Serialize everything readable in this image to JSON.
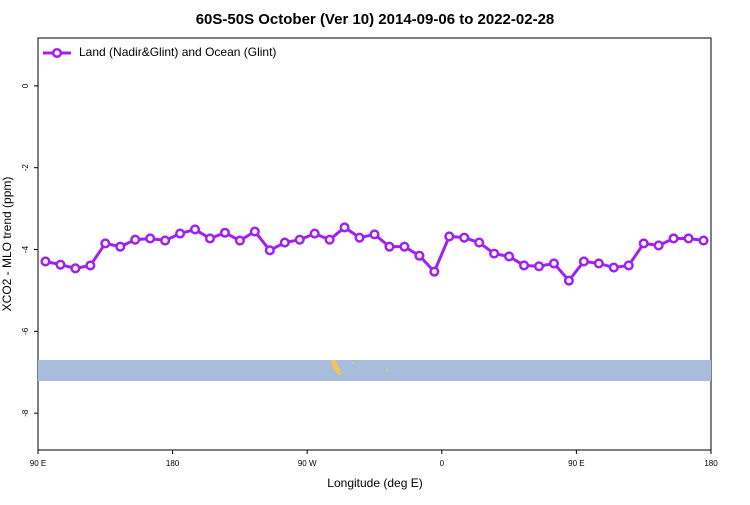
{
  "chart_data": {
    "type": "line",
    "title": "60S-50S October (Ver 10)   2014-09-06 to 2022-02-28",
    "x_label": "Longitude (deg E)",
    "y_label": "XCO2 - MLO trend (ppm)",
    "x": [
      95,
      105,
      115,
      125,
      135,
      145,
      155,
      165,
      175,
      185,
      195,
      205,
      215,
      225,
      235,
      245,
      255,
      265,
      275,
      285,
      295,
      305,
      315,
      325,
      335,
      345,
      355,
      365,
      375,
      385,
      395,
      405,
      415,
      425,
      435,
      445,
      455,
      465,
      475,
      485,
      495,
      505,
      515,
      525,
      535
    ],
    "series": [
      {
        "name": "Land (Nadir&Glint) and Ocean (Glint)",
        "color": "#a020f0",
        "values": [
          -4.29,
          -4.37,
          -4.46,
          -4.39,
          -3.85,
          -3.93,
          -3.76,
          -3.73,
          -3.78,
          -3.61,
          -3.51,
          -3.73,
          -3.59,
          -3.78,
          -3.56,
          -4.02,
          -3.83,
          -3.76,
          -3.61,
          -3.76,
          -3.46,
          -3.71,
          -3.63,
          -3.93,
          -3.93,
          -4.15,
          -4.54,
          -3.68,
          -3.71,
          -3.83,
          -4.1,
          -4.17,
          -4.39,
          -4.41,
          -4.34,
          -4.76,
          -4.29,
          -4.34,
          -4.44,
          -4.39,
          -3.85,
          -3.9,
          -3.73,
          -3.73,
          -3.78
        ]
      }
    ],
    "xlim": [
      90,
      540
    ],
    "xticks": [
      {
        "value": 90,
        "label": "90 E"
      },
      180,
      {
        "value": 270,
        "label": "90 W"
      },
      {
        "value": 360,
        "label": "0"
      },
      {
        "value": 450,
        "label": "90 E"
      },
      {
        "value": 540,
        "label": "180"
      }
    ],
    "ylim": [
      -8.9,
      1.17
    ],
    "yticks": [
      0,
      -2,
      -4,
      -6,
      -8
    ],
    "legend_position": "top-left"
  }
}
